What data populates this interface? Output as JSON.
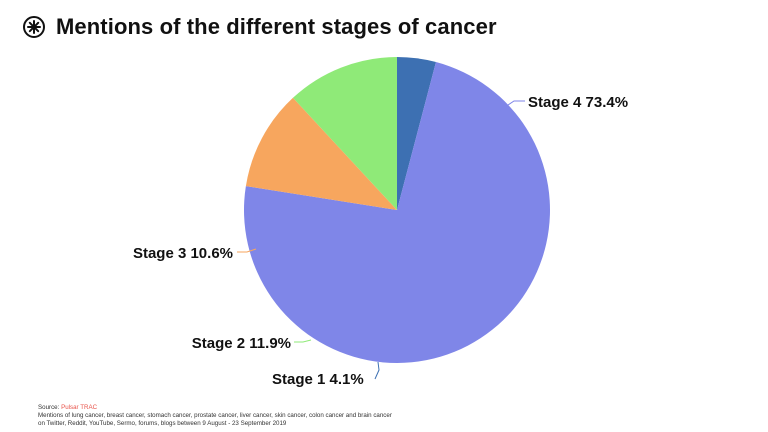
{
  "header": {
    "title": "Mentions of the different stages of cancer",
    "logo_icon": "pulsar-logo-icon"
  },
  "footer": {
    "source_label": "Source:",
    "source_name": "Pulsar TRAC",
    "note_line1": "Mentions of lung cancer, breast cancer, stomach cancer, prostate cancer, liver cancer, skin cancer, colon cancer and brain cancer",
    "note_line2": "on Twitter, Reddit, YouTube, Sermo, forums, blogs between 9 August - 23 September 2019"
  },
  "chart_data": {
    "type": "pie",
    "title": "Mentions of the different stages of cancer",
    "slices": [
      {
        "label": "Stage 1 4.1%",
        "category": "Stage 1",
        "value": 4.1,
        "color": "#3d70b2"
      },
      {
        "label": "Stage 4 73.4%",
        "category": "Stage 4",
        "value": 73.4,
        "color": "#7f86e8"
      },
      {
        "label": "Stage 3 10.6%",
        "category": "Stage 3",
        "value": 10.6,
        "color": "#f7a65e"
      },
      {
        "label": "Stage 2 11.9%",
        "category": "Stage 2",
        "value": 11.9,
        "color": "#8fea78"
      }
    ]
  }
}
